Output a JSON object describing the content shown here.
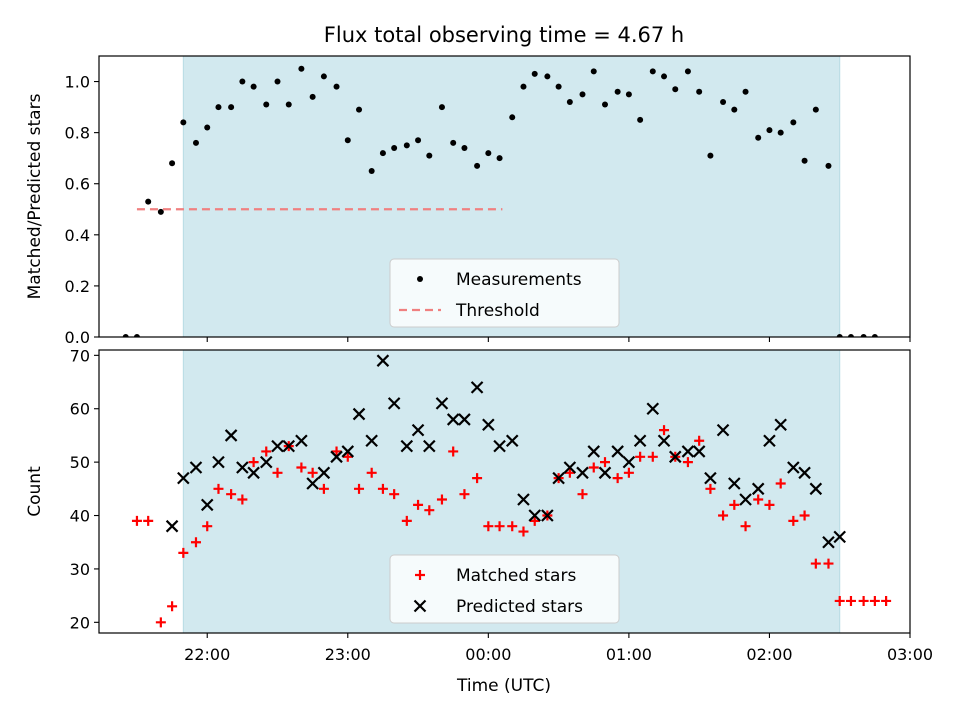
{
  "chart_data": {
    "title": "Flux total observing time = 4.67 h",
    "xlabel": "Time (UTC)",
    "x_unit": "hours since 22:00 UTC",
    "x_tick_labels": [
      "22:00",
      "23:00",
      "00:00",
      "01:00",
      "02:00",
      "03:00"
    ],
    "x_tick_values": [
      0,
      1,
      2,
      3,
      4,
      5
    ],
    "xlim": [
      -0.77,
      5.0
    ],
    "observing_window": [
      -0.17,
      4.5
    ],
    "window_color": "#d2e9ef",
    "panels": [
      {
        "type": "scatter",
        "ylabel": "Matched/Predicted stars",
        "ylim": [
          0,
          1.1
        ],
        "y_ticks": [
          0.0,
          0.2,
          0.4,
          0.6,
          0.8,
          1.0
        ],
        "y_tick_labels": [
          "0.0",
          "0.2",
          "0.4",
          "0.6",
          "0.8",
          "1.0"
        ],
        "legend_position": "bottom-center",
        "series": [
          {
            "name": "Measurements",
            "marker": "dot",
            "color": "#000000",
            "x": [
              -0.58,
              -0.5,
              -0.42,
              -0.33,
              -0.25,
              -0.17,
              -0.08,
              0.0,
              0.08,
              0.17,
              0.25,
              0.33,
              0.42,
              0.5,
              0.58,
              0.67,
              0.75,
              0.83,
              0.92,
              1.0,
              1.08,
              1.17,
              1.25,
              1.33,
              1.42,
              1.5,
              1.58,
              1.67,
              1.75,
              1.83,
              1.92,
              2.0,
              2.08,
              2.17,
              2.25,
              2.33,
              2.42,
              2.5,
              2.58,
              2.67,
              2.75,
              2.83,
              2.92,
              3.0,
              3.08,
              3.17,
              3.25,
              3.33,
              3.42,
              3.5,
              3.58,
              3.67,
              3.75,
              3.83,
              3.92,
              4.0,
              4.08,
              4.17,
              4.25,
              4.33,
              4.42,
              4.5,
              4.58,
              4.67,
              4.75
            ],
            "y": [
              0.0,
              0.0,
              0.53,
              0.49,
              0.68,
              0.84,
              0.76,
              0.82,
              0.9,
              0.9,
              1.0,
              0.98,
              0.91,
              1.0,
              0.91,
              1.05,
              0.94,
              1.02,
              0.98,
              0.77,
              0.89,
              0.65,
              0.72,
              0.74,
              0.75,
              0.77,
              0.71,
              0.9,
              0.76,
              0.74,
              0.67,
              0.72,
              0.7,
              0.86,
              0.98,
              1.03,
              1.02,
              0.98,
              0.92,
              0.95,
              1.04,
              0.91,
              0.96,
              0.95,
              0.85,
              1.04,
              1.02,
              0.97,
              1.04,
              0.96,
              0.71,
              0.92,
              0.89,
              0.96,
              0.78,
              0.81,
              0.8,
              0.84,
              0.69,
              0.89,
              0.67,
              0.0,
              0.0,
              0.0,
              0.0
            ]
          },
          {
            "name": "Threshold",
            "type": "line",
            "dashed": true,
            "color": "#f08080",
            "x": [
              -0.5,
              2.1
            ],
            "y": [
              0.5,
              0.5
            ]
          }
        ]
      },
      {
        "type": "scatter",
        "ylabel": "Count",
        "ylim": [
          18,
          71
        ],
        "y_ticks": [
          20,
          30,
          40,
          50,
          60,
          70
        ],
        "y_tick_labels": [
          "20",
          "30",
          "40",
          "50",
          "60",
          "70"
        ],
        "legend_position": "bottom-center",
        "series": [
          {
            "name": "Matched stars",
            "marker": "plus",
            "color": "#ff0000",
            "x": [
              -0.5,
              -0.42,
              -0.33,
              -0.25,
              -0.17,
              -0.08,
              0.0,
              0.08,
              0.17,
              0.25,
              0.33,
              0.42,
              0.5,
              0.58,
              0.67,
              0.75,
              0.83,
              0.92,
              1.0,
              1.08,
              1.17,
              1.25,
              1.33,
              1.42,
              1.5,
              1.58,
              1.67,
              1.75,
              1.83,
              1.92,
              2.0,
              2.08,
              2.17,
              2.25,
              2.33,
              2.42,
              2.5,
              2.58,
              2.67,
              2.75,
              2.83,
              2.92,
              3.0,
              3.08,
              3.17,
              3.25,
              3.33,
              3.42,
              3.5,
              3.58,
              3.67,
              3.75,
              3.83,
              3.92,
              4.0,
              4.08,
              4.17,
              4.25,
              4.33,
              4.42,
              4.5,
              4.58,
              4.67,
              4.75,
              4.83
            ],
            "y": [
              39,
              39,
              20,
              23,
              33,
              35,
              38,
              45,
              44,
              43,
              50,
              52,
              48,
              53,
              49,
              48,
              45,
              52,
              51,
              45,
              48,
              45,
              44,
              39,
              42,
              41,
              43,
              52,
              44,
              47,
              38,
              38,
              38,
              37,
              39,
              40,
              47,
              48,
              44,
              49,
              50,
              47,
              48,
              51,
              51,
              56,
              51,
              50,
              54,
              45,
              40,
              42,
              38,
              43,
              42,
              46,
              39,
              40,
              31,
              31,
              24,
              24,
              24,
              24,
              24
            ]
          },
          {
            "name": "Predicted stars",
            "marker": "x",
            "color": "#000000",
            "x": [
              -0.25,
              -0.17,
              -0.08,
              0.0,
              0.08,
              0.17,
              0.25,
              0.33,
              0.42,
              0.5,
              0.58,
              0.67,
              0.75,
              0.83,
              0.92,
              1.0,
              1.08,
              1.17,
              1.25,
              1.33,
              1.42,
              1.5,
              1.58,
              1.67,
              1.75,
              1.83,
              1.92,
              2.0,
              2.08,
              2.17,
              2.25,
              2.33,
              2.42,
              2.5,
              2.58,
              2.67,
              2.75,
              2.83,
              2.92,
              3.0,
              3.08,
              3.17,
              3.25,
              3.33,
              3.42,
              3.5,
              3.58,
              3.67,
              3.75,
              3.83,
              3.92,
              4.0,
              4.08,
              4.17,
              4.25,
              4.33,
              4.42,
              4.5
            ],
            "y": [
              38,
              47,
              49,
              42,
              50,
              55,
              49,
              48,
              50,
              53,
              53,
              54,
              46,
              48,
              51,
              52,
              59,
              54,
              69,
              61,
              53,
              56,
              53,
              61,
              58,
              58,
              64,
              57,
              53,
              54,
              43,
              40,
              40,
              47,
              49,
              48,
              52,
              48,
              52,
              50,
              54,
              60,
              54,
              51,
              52,
              52,
              47,
              56,
              46,
              43,
              45,
              54,
              57,
              49,
              48,
              45,
              35,
              36
            ]
          }
        ]
      }
    ]
  }
}
